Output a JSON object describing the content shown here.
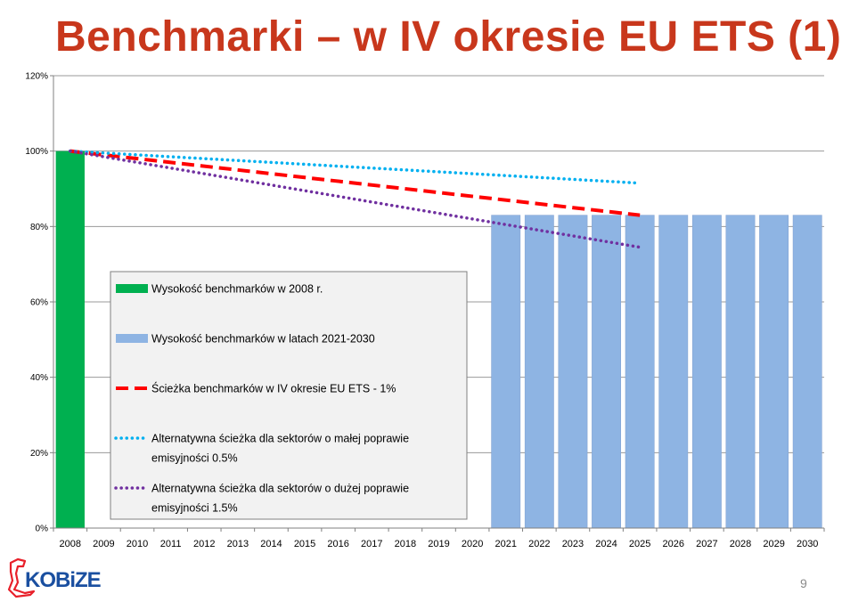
{
  "slide": {
    "title": "Benchmarki – w IV okresie EU ETS (1)",
    "page_number": "9",
    "logo_text": "KOBiZE"
  },
  "colors": {
    "title": "#c8371c",
    "bar_2008": "#00b050",
    "bar_future": "#8eb4e3",
    "path_1pct": "#ff0000",
    "path_05pct": "#00b0f0",
    "path_15pct": "#7030a0",
    "logo": "#1a4fa0"
  },
  "chart_data": {
    "type": "bar",
    "categories": [
      "2008",
      "2009",
      "2010",
      "2011",
      "2012",
      "2013",
      "2014",
      "2015",
      "2016",
      "2017",
      "2018",
      "2019",
      "2020",
      "2021",
      "2022",
      "2023",
      "2024",
      "2025",
      "2026",
      "2027",
      "2028",
      "2029",
      "2030"
    ],
    "y_ticks": [
      "0%",
      "20%",
      "40%",
      "60%",
      "80%",
      "100%",
      "120%"
    ],
    "ylim": [
      0,
      120
    ],
    "grid": "horizontal",
    "series": [
      {
        "name": "Wysokość benchmarków w 2008 r.",
        "kind": "bar",
        "color": "#00b050",
        "values": [
          100,
          null,
          null,
          null,
          null,
          null,
          null,
          null,
          null,
          null,
          null,
          null,
          null,
          null,
          null,
          null,
          null,
          null,
          null,
          null,
          null,
          null,
          null
        ]
      },
      {
        "name": "Wysokość benchmarków w latach 2021-2030",
        "kind": "bar",
        "color": "#8eb4e3",
        "values": [
          null,
          null,
          null,
          null,
          null,
          null,
          null,
          null,
          null,
          null,
          null,
          null,
          null,
          83,
          83,
          83,
          83,
          83,
          83,
          83,
          83,
          83,
          83
        ]
      },
      {
        "name": "Ścieżka benchmarków w IV okresie EU ETS - 1%",
        "kind": "line",
        "style": "dashed",
        "color": "#ff0000",
        "points": [
          [
            "2008",
            100
          ],
          [
            "2025",
            83
          ]
        ]
      },
      {
        "name": "Alternatywna ścieżka dla sektorów o małej poprawie emisyjności 0.5%",
        "kind": "line",
        "style": "dotted",
        "color": "#00b0f0",
        "points": [
          [
            "2008",
            100
          ],
          [
            "2025",
            91.5
          ]
        ]
      },
      {
        "name": "Alternatywna ścieżka dla sektorów o dużej poprawie emisyjności 1.5%",
        "kind": "line",
        "style": "dotted",
        "color": "#7030a0",
        "points": [
          [
            "2008",
            100
          ],
          [
            "2025",
            74.5
          ]
        ]
      }
    ],
    "legend": {
      "placement": "center-left",
      "entries": [
        {
          "lines": [
            "Wysokość benchmarków w 2008 r."
          ],
          "symbol": "bar",
          "color": "#00b050"
        },
        {
          "lines": [
            "Wysokość benchmarków w latach 2021-2030"
          ],
          "symbol": "bar",
          "color": "#8eb4e3"
        },
        {
          "lines": [
            "Ścieżka benchmarków w IV okresie EU ETS - 1%"
          ],
          "symbol": "dashed",
          "color": "#ff0000"
        },
        {
          "lines": [
            "Alternatywna ścieżka dla sektorów o małej poprawie",
            "emisyjności 0.5%"
          ],
          "symbol": "dotted",
          "color": "#00b0f0"
        },
        {
          "lines": [
            "Alternatywna ścieżka dla sektorów o dużej poprawie",
            "emisyjności 1.5%"
          ],
          "symbol": "dotted",
          "color": "#7030a0"
        }
      ]
    }
  }
}
